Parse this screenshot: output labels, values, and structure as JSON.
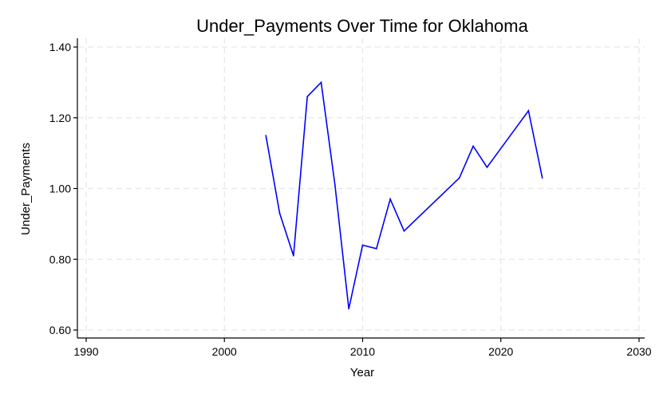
{
  "chart_data": {
    "type": "line",
    "title": "Under_Payments Over Time for Oklahoma",
    "xlabel": "Year",
    "ylabel": "Under_Payments",
    "xlim": [
      1990,
      2030
    ],
    "ylim": [
      0.6,
      1.4
    ],
    "xticks": [
      1990,
      2000,
      2010,
      2020,
      2030
    ],
    "xtick_labels": [
      "1990",
      "2000",
      "2010",
      "2020",
      "2030"
    ],
    "yticks": [
      0.6,
      0.8,
      1.0,
      1.2,
      1.4
    ],
    "ytick_labels": [
      "0.60",
      "0.80",
      "1.00",
      "1.20",
      "1.40"
    ],
    "grid": true,
    "legend": "none",
    "series": [
      {
        "color": "#0000ff",
        "x": [
          2003,
          2004,
          2005,
          2006,
          2007,
          2008,
          2009,
          2010,
          2011,
          2012,
          2013,
          2017,
          2018,
          2019,
          2022,
          2023
        ],
        "values": [
          1.15,
          0.93,
          0.81,
          1.26,
          1.3,
          1.01,
          0.66,
          0.84,
          0.83,
          0.97,
          0.88,
          1.03,
          1.12,
          1.06,
          1.22,
          1.03
        ]
      }
    ],
    "colors": {
      "line": "#0000ff",
      "grid": "#e6e6e6",
      "axis": "#000000",
      "background": "#ffffff"
    }
  }
}
